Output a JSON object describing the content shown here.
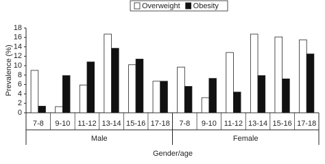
{
  "chart_data": {
    "type": "bar",
    "categories": [
      "7-8",
      "9-10",
      "11-12",
      "13-14",
      "15-16",
      "17-18",
      "7-8",
      "9-10",
      "11-12",
      "13-14",
      "15-16",
      "17-18"
    ],
    "groups": [
      "Male",
      "Female"
    ],
    "series": [
      {
        "name": "Overweight",
        "color": "#ffffff",
        "values": [
          9.0,
          1.3,
          5.9,
          16.7,
          10.2,
          6.7,
          9.7,
          3.2,
          12.8,
          16.7,
          16.1,
          15.5
        ]
      },
      {
        "name": "Obesity",
        "color": "#111111",
        "values": [
          1.4,
          7.9,
          10.8,
          13.7,
          11.4,
          6.7,
          5.6,
          7.3,
          4.4,
          7.9,
          7.2,
          12.5
        ]
      }
    ],
    "ylim": [
      0,
      18
    ],
    "yticks": [
      0,
      2,
      4,
      6,
      8,
      10,
      12,
      14,
      16,
      18
    ],
    "ylabel": "Prevalence (%)",
    "xlabel": "Gender/age"
  }
}
